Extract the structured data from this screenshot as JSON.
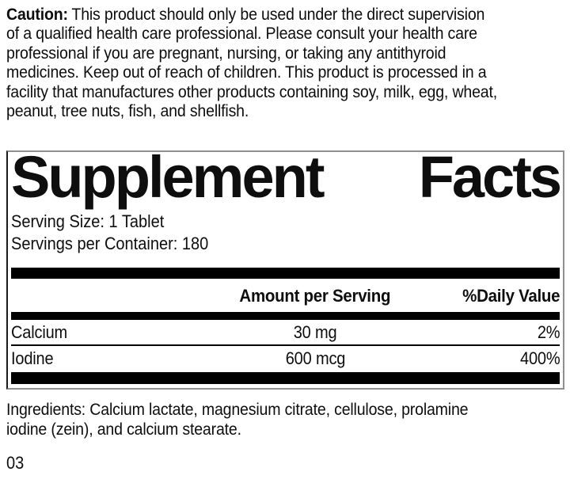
{
  "caution": {
    "label": "Caution:",
    "line1_rest": "This product should only be used under the direct supervision",
    "lines": [
      "of a qualified health care professional. Please consult your health care",
      "professional if you are pregnant, nursing, or taking any antithyroid",
      "medicines. Keep out of reach of children. This product is processed in a",
      "facility that manufactures other products containing soy, milk, egg, wheat,",
      "peanut, tree nuts, fish, and shellfish."
    ]
  },
  "panel": {
    "title_word1": "Supplement",
    "title_word2": "Facts",
    "serving_size": "Serving Size: 1 Tablet",
    "servings_per_container": "Servings per Container: 180",
    "columns": {
      "amount": "Amount per Serving",
      "daily_value": "%Daily Value"
    },
    "rows": [
      {
        "name": "Calcium",
        "amount": "30 mg",
        "dv": "2%"
      },
      {
        "name": "Iodine",
        "amount": "600 mcg",
        "dv": "400%"
      }
    ]
  },
  "ingredients": {
    "line1": "Ingredients: Calcium lactate, magnesium citrate, cellulose, prolamine",
    "line2": "iodine (zein), and calcium stearate."
  },
  "footer_code": "03",
  "colors": {
    "text": "#0e0e0e",
    "bar": "#000000",
    "border_gray": "#909090",
    "border_left_black": "#1a1a1a",
    "background": "#ffffff"
  }
}
